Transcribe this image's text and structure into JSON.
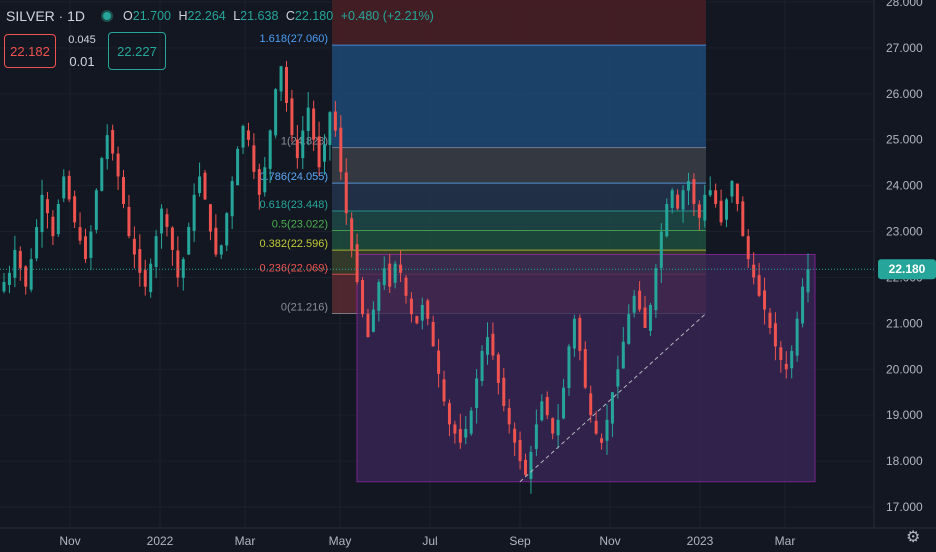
{
  "header": {
    "symbol": "SILVER",
    "separator": "·",
    "timeframe": "1D",
    "o_label": "O",
    "o_value": "21.700",
    "h_label": "H",
    "h_value": "22.264",
    "l_label": "L",
    "l_value": "21.638",
    "c_label": "C",
    "c_value": "22.180",
    "change": "+0.480 (+2.21%)"
  },
  "trade": {
    "sell_price": "22.182",
    "spread": "0.045",
    "quantity": "0.01",
    "buy_price": "22.227"
  },
  "colors": {
    "background": "#131722",
    "up": "#26a69a",
    "down": "#ef5350",
    "grid": "#1e222d",
    "axis_text": "#b2b5be"
  },
  "chart_data": {
    "type": "candlestick",
    "price_axis_ticks": [
      "28.000",
      "27.000",
      "26.000",
      "25.000",
      "24.000",
      "23.000",
      "22.000",
      "21.000",
      "20.000",
      "19.000",
      "18.000",
      "17.000"
    ],
    "price_axis_values": [
      28,
      27,
      26,
      25,
      24,
      23,
      22,
      21,
      20,
      19,
      18,
      17
    ],
    "time_axis_labels": [
      "Nov",
      "2022",
      "Mar",
      "May",
      "Jul",
      "Sep",
      "Nov",
      "2023",
      "Mar"
    ],
    "ylim": [
      16.75,
      28.05
    ],
    "last_price": "22.180",
    "close_series": [
      21.9,
      22.1,
      22.6,
      22.2,
      21.8,
      22.4,
      23.1,
      23.8,
      23.4,
      22.9,
      23.6,
      24.2,
      23.7,
      23.2,
      22.8,
      22.4,
      23.0,
      23.9,
      24.6,
      25.1,
      24.7,
      24.2,
      23.6,
      22.9,
      22.5,
      22.1,
      21.8,
      22.3,
      22.9,
      23.5,
      23.1,
      22.6,
      22.0,
      22.4,
      23.1,
      23.8,
      24.2,
      23.7,
      23.0,
      22.5,
      22.7,
      23.4,
      24.1,
      24.8,
      25.3,
      25.0,
      24.3,
      23.8,
      24.4,
      25.2,
      26.1,
      26.6,
      25.8,
      25.1,
      24.6,
      25.2,
      25.7,
      25.0,
      24.4,
      24.9,
      25.6,
      25.2,
      24.3,
      23.4,
      22.6,
      21.9,
      21.2,
      20.7,
      21.3,
      21.9,
      22.2,
      21.8,
      22.3,
      22.1,
      21.6,
      21.2,
      21.0,
      21.4,
      21.1,
      20.5,
      19.9,
      19.3,
      18.8,
      18.6,
      18.4,
      18.7,
      19.1,
      19.8,
      20.4,
      20.7,
      20.3,
      19.7,
      19.2,
      18.8,
      18.4,
      18.0,
      17.7,
      18.2,
      18.8,
      19.3,
      19.0,
      18.6,
      18.9,
      19.6,
      20.5,
      21.1,
      20.4,
      19.6,
      19.0,
      18.6,
      18.4,
      18.9,
      19.5,
      20.0,
      20.6,
      21.2,
      21.6,
      21.3,
      20.9,
      21.4,
      22.2,
      23.0,
      23.6,
      23.9,
      23.5,
      23.9,
      24.1,
      23.6,
      23.3,
      23.8,
      23.9,
      23.6,
      23.2,
      23.7,
      24.1,
      23.6,
      22.9,
      22.4,
      22.0,
      21.6,
      21.3,
      20.9,
      20.5,
      20.2,
      20.0,
      20.4,
      21.1,
      21.8,
      22.18
    ],
    "fibonacci": {
      "levels": [
        {
          "label": "1.618(27.060)",
          "price": 27.06,
          "fill": "#1e4976",
          "text_color": "#4c9ef5"
        },
        {
          "label": "1(24.828)",
          "price": 24.828,
          "fill": "#3a3e47",
          "text_color": "#8a8e99"
        },
        {
          "label": "0.786(24.055)",
          "price": 24.055,
          "fill": "#24344c",
          "text_color": "#5aa8f7"
        },
        {
          "label": "0.618(23.448)",
          "price": 23.448,
          "fill": "#1d4a46",
          "text_color": "#26a69a"
        },
        {
          "label": "0.5(23.022)",
          "price": 23.022,
          "fill": "#1f4d3d",
          "text_color": "#4caf50"
        },
        {
          "label": "0.382(22.596)",
          "price": 22.596,
          "fill": "#39412c",
          "text_color": "#c0ca33"
        },
        {
          "label": "0.236(22.069)",
          "price": 22.069,
          "fill": "#5a2a30",
          "text_color": "#ef5350"
        },
        {
          "label": "0(21.216)",
          "price": 21.216,
          "fill": "none",
          "text_color": "#8a8e99"
        }
      ],
      "top_zone_fill": "#4a2025"
    },
    "range_box": {
      "price_top": 22.5,
      "price_bottom": 17.55,
      "fill": "#3a2658",
      "border": "#9c27b0"
    },
    "trend_line": {
      "from_price": 17.55,
      "to_price": 21.216
    }
  },
  "ui": {
    "settings_icon": "gear-icon"
  }
}
